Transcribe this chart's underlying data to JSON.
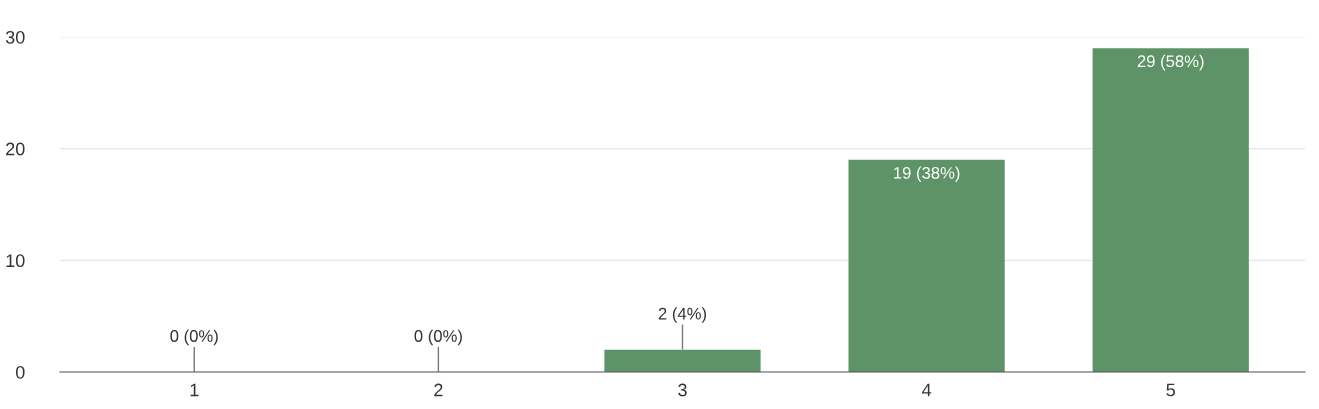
{
  "chart_data": {
    "type": "bar",
    "categories": [
      "1",
      "2",
      "3",
      "4",
      "5"
    ],
    "values": [
      0,
      0,
      2,
      19,
      29
    ],
    "value_labels": [
      "0 (0%)",
      "0 (0%)",
      "2 (4%)",
      "19 (38%)",
      "29 (58%)"
    ],
    "color": "#5e9368",
    "ylim": [
      0,
      30
    ],
    "yticks": [
      0,
      10,
      20,
      30
    ],
    "grid": "y"
  }
}
